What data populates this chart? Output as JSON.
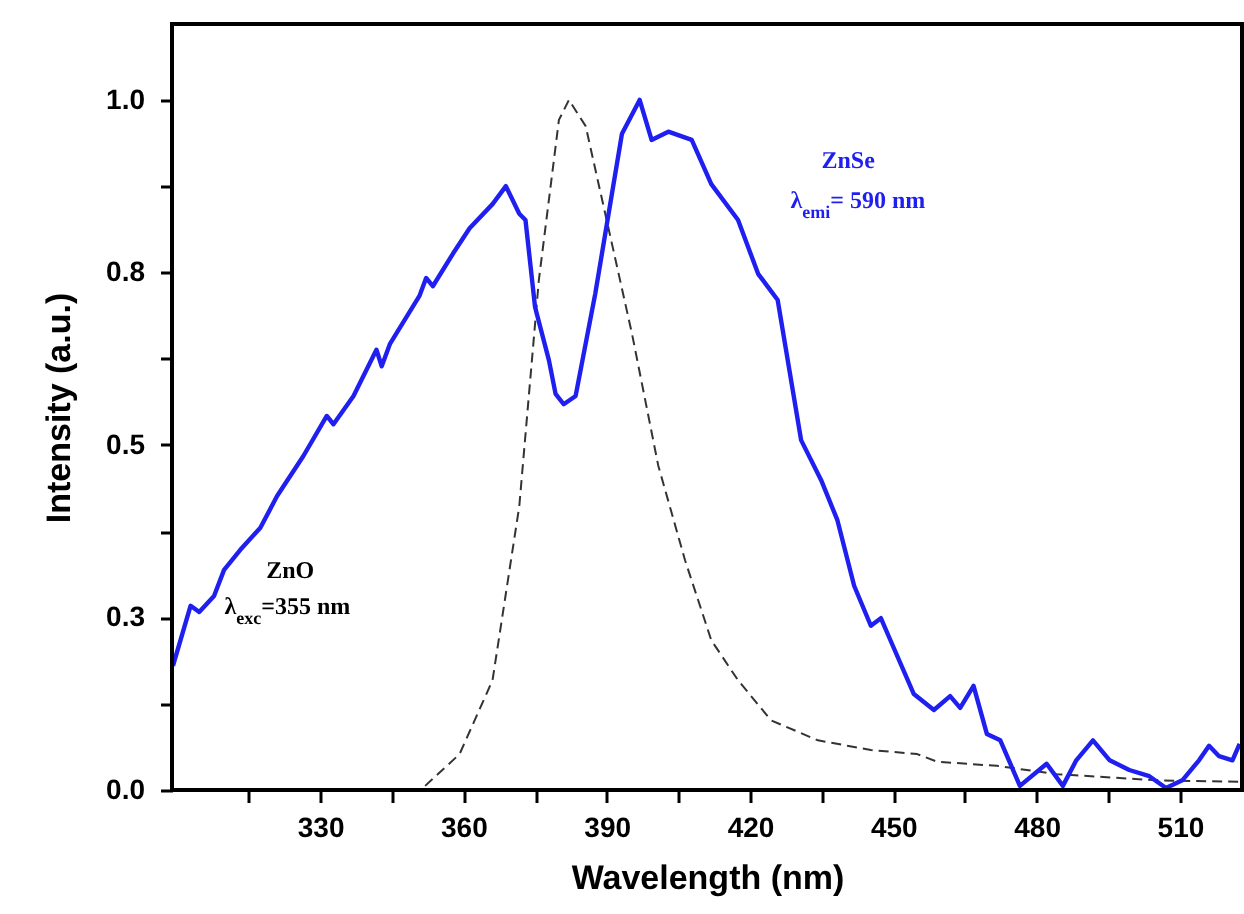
{
  "chart_data": {
    "type": "line",
    "xlabel": "Wavelength (nm)",
    "ylabel": "Intensity (a.u.)",
    "xlim": [
      299,
      523
    ],
    "ylim": [
      0,
      1.11
    ],
    "xticks": [
      {
        "value": 315,
        "label": null
      },
      330,
      {
        "value": 345,
        "label": null
      },
      360,
      {
        "value": 375,
        "label": null
      },
      390,
      {
        "value": 405,
        "label": null
      },
      420,
      {
        "value": 435,
        "label": null
      },
      450,
      {
        "value": 465,
        "label": null
      },
      480,
      {
        "value": 495,
        "label": null
      },
      510
    ],
    "yticks": [
      {
        "value": 0,
        "label": "0.0"
      },
      {
        "value": 0.125,
        "label": null
      },
      {
        "value": 0.25,
        "label": "0.3"
      },
      {
        "value": 0.375,
        "label": null
      },
      {
        "value": 0.5,
        "label": "0.5"
      },
      {
        "value": 0.625,
        "label": null
      },
      {
        "value": 0.75,
        "label": "0.8"
      },
      {
        "value": 0.875,
        "label": null
      },
      {
        "value": 1.0,
        "label": "1.0"
      }
    ],
    "grid": false,
    "marker": "none",
    "annotations": [
      "ZnO",
      "λ$_{exc}$=355 nm",
      "ZnSe",
      "λ$_{emi}$= 590 nm"
    ],
    "series": [
      {
        "color": "#333333",
        "line_style": "dashed",
        "x": [
          352,
          359.2,
          366.1,
          371.7,
          375.8,
          380,
          382.1,
          385.6,
          389.7,
          395.3,
          400.8,
          406.4,
          411.9,
          417.5,
          424.4,
          434.2,
          445.3,
          455,
          459.2,
          471.7,
          484.2,
          505,
          522.5
        ],
        "values": [
          0.006,
          0.052,
          0.159,
          0.411,
          0.739,
          0.971,
          1.0,
          0.962,
          0.835,
          0.661,
          0.47,
          0.333,
          0.217,
          0.159,
          0.101,
          0.072,
          0.058,
          0.052,
          0.041,
          0.035,
          0.023,
          0.014,
          0.012
        ]
      },
      {
        "color": "#1f1ff0",
        "line_style": "solid",
        "x": [
          299.2,
          302.9,
          304.7,
          307.8,
          309.9,
          313.3,
          317.5,
          321,
          326.5,
          331.4,
          332.8,
          337,
          341.8,
          342.9,
          344.6,
          350.8,
          352.2,
          353.6,
          357.8,
          361.3,
          366.1,
          368.9,
          371.7,
          373,
          375,
          377.9,
          379.3,
          381,
          383.5,
          387.6,
          393.2,
          396.9,
          399.4,
          402.9,
          407.8,
          411.9,
          417.5,
          421.7,
          425.8,
          430.7,
          434.9,
          438.3,
          441.8,
          445.3,
          447.4,
          449.4,
          454.3,
          458.5,
          461.9,
          464,
          466.8,
          469.6,
          472.4,
          476.5,
          482.1,
          485.5,
          488.3,
          491.8,
          495.3,
          499.4,
          503.6,
          507.1,
          510.5,
          514,
          516.1,
          518.2,
          521,
          522.5
        ],
        "values": [
          0.18,
          0.267,
          0.258,
          0.281,
          0.319,
          0.348,
          0.38,
          0.426,
          0.484,
          0.542,
          0.53,
          0.571,
          0.638,
          0.614,
          0.646,
          0.716,
          0.742,
          0.73,
          0.777,
          0.814,
          0.849,
          0.875,
          0.835,
          0.826,
          0.7,
          0.623,
          0.574,
          0.559,
          0.571,
          0.719,
          0.951,
          1.0,
          0.942,
          0.954,
          0.942,
          0.878,
          0.826,
          0.748,
          0.71,
          0.507,
          0.449,
          0.391,
          0.296,
          0.238,
          0.249,
          0.217,
          0.139,
          0.116,
          0.136,
          0.119,
          0.151,
          0.081,
          0.072,
          0.006,
          0.038,
          0.006,
          0.043,
          0.072,
          0.043,
          0.029,
          0.02,
          0.003,
          0.014,
          0.043,
          0.064,
          0.049,
          0.043,
          0.067
        ]
      }
    ]
  }
}
